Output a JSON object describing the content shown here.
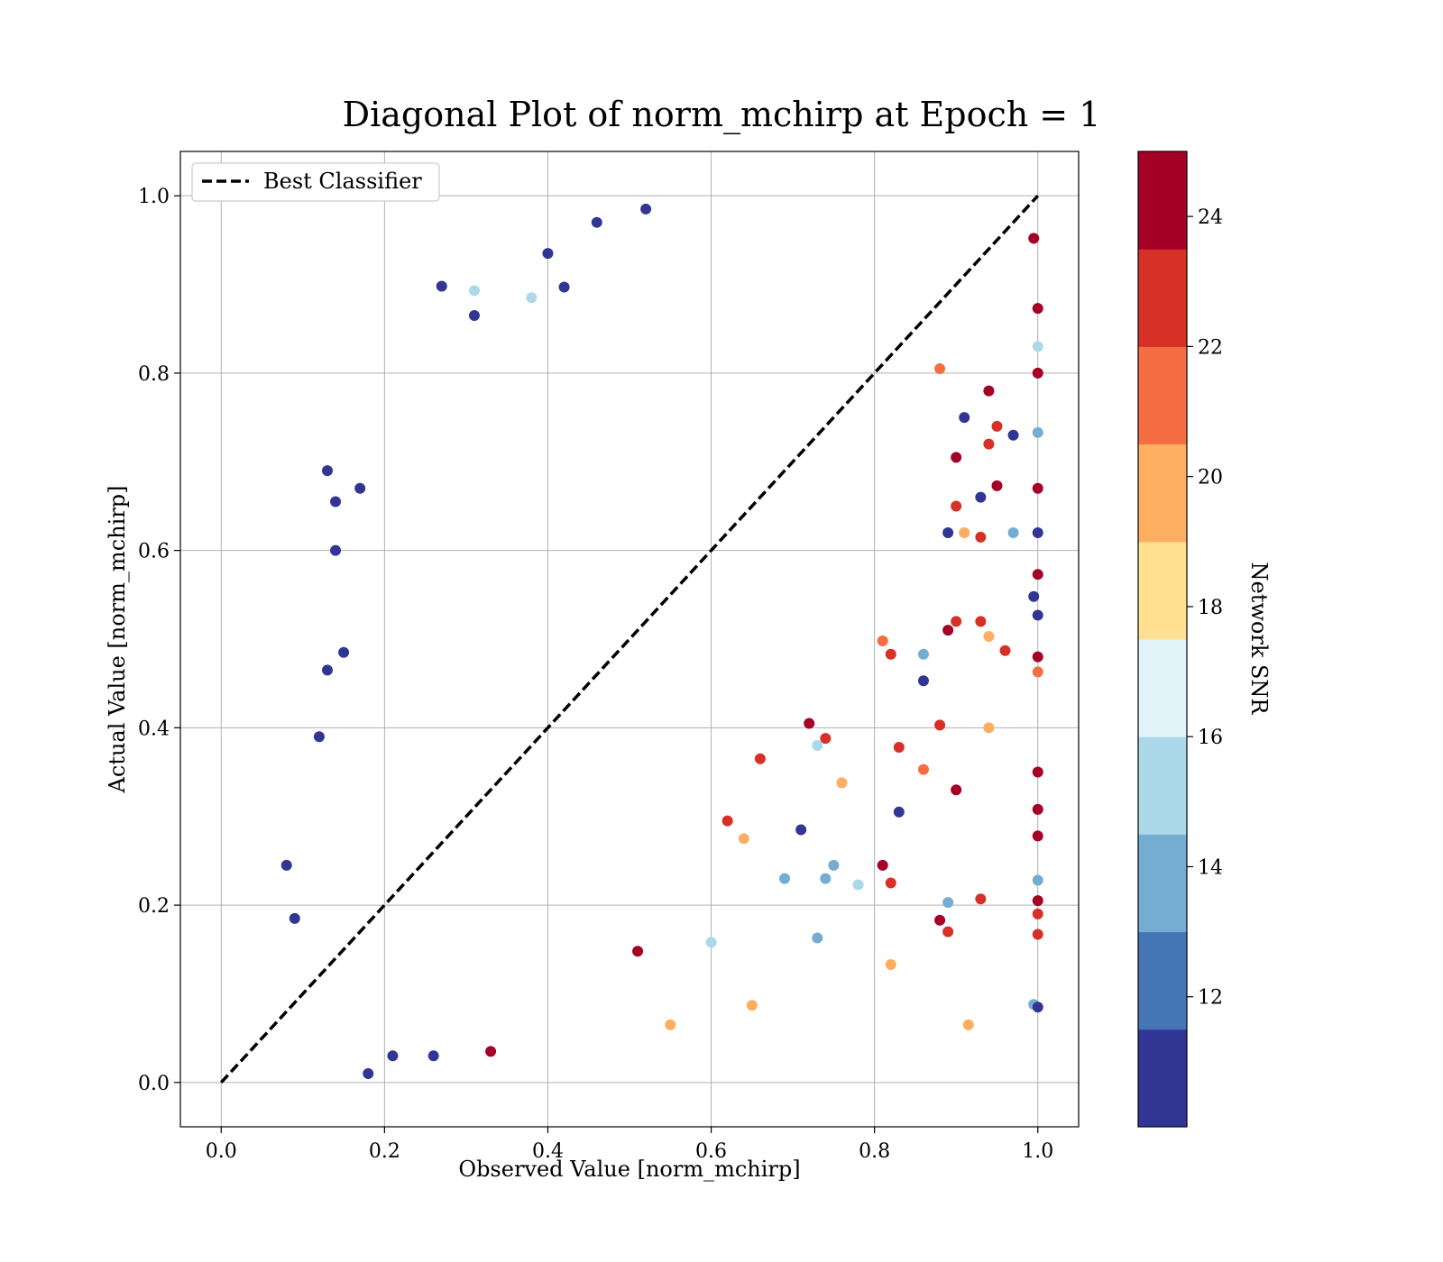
{
  "chart_data": {
    "type": "scatter",
    "title": "Diagonal Plot of norm_mchirp at Epoch = 1",
    "xlabel": "Observed Value [norm_mchirp]",
    "ylabel": "Actual Value [norm_mchirp]",
    "xlim": [
      -0.05,
      1.05
    ],
    "ylim": [
      -0.05,
      1.05
    ],
    "xticks": [
      "0.0",
      "0.2",
      "0.4",
      "0.6",
      "0.8",
      "1.0"
    ],
    "yticks": [
      "0.0",
      "0.2",
      "0.4",
      "0.6",
      "0.8",
      "1.0"
    ],
    "grid": true,
    "legend": {
      "position": "top-left",
      "entries": [
        "Best Classifier"
      ]
    },
    "reference_line": {
      "name": "Best Classifier",
      "x": [
        0.0,
        1.0
      ],
      "y": [
        0.0,
        1.0
      ],
      "style": "dashed",
      "color": "#000000"
    },
    "colorbar": {
      "label": "Network SNR",
      "ticks": [
        "12",
        "14",
        "16",
        "18",
        "20",
        "22",
        "24"
      ],
      "range": [
        10,
        25
      ],
      "colors": [
        "#313695",
        "#4575b4",
        "#74add1",
        "#abd9e9",
        "#e0f3f8",
        "#fee090",
        "#fdae61",
        "#f46d43",
        "#d73027",
        "#a50026"
      ]
    },
    "points": [
      {
        "x": 0.52,
        "y": 0.985,
        "snr": 11
      },
      {
        "x": 0.46,
        "y": 0.97,
        "snr": 11
      },
      {
        "x": 0.4,
        "y": 0.935,
        "snr": 11
      },
      {
        "x": 0.27,
        "y": 0.898,
        "snr": 11
      },
      {
        "x": 0.31,
        "y": 0.865,
        "snr": 11
      },
      {
        "x": 0.31,
        "y": 0.893,
        "snr": 15
      },
      {
        "x": 0.38,
        "y": 0.885,
        "snr": 15
      },
      {
        "x": 0.42,
        "y": 0.897,
        "snr": 11
      },
      {
        "x": 0.14,
        "y": 0.655,
        "snr": 11
      },
      {
        "x": 0.13,
        "y": 0.69,
        "snr": 11
      },
      {
        "x": 0.17,
        "y": 0.67,
        "snr": 11
      },
      {
        "x": 0.14,
        "y": 0.6,
        "snr": 11
      },
      {
        "x": 0.15,
        "y": 0.485,
        "snr": 11
      },
      {
        "x": 0.13,
        "y": 0.465,
        "snr": 11
      },
      {
        "x": 0.12,
        "y": 0.39,
        "snr": 11
      },
      {
        "x": 0.08,
        "y": 0.245,
        "snr": 11
      },
      {
        "x": 0.09,
        "y": 0.185,
        "snr": 11
      },
      {
        "x": 0.18,
        "y": 0.01,
        "snr": 11
      },
      {
        "x": 0.21,
        "y": 0.03,
        "snr": 11
      },
      {
        "x": 0.26,
        "y": 0.03,
        "snr": 11
      },
      {
        "x": 0.33,
        "y": 0.035,
        "snr": 24
      },
      {
        "x": 0.55,
        "y": 0.065,
        "snr": 20
      },
      {
        "x": 0.65,
        "y": 0.087,
        "snr": 19
      },
      {
        "x": 0.915,
        "y": 0.065,
        "snr": 19
      },
      {
        "x": 0.82,
        "y": 0.133,
        "snr": 19
      },
      {
        "x": 0.73,
        "y": 0.163,
        "snr": 13
      },
      {
        "x": 0.6,
        "y": 0.158,
        "snr": 15
      },
      {
        "x": 0.51,
        "y": 0.148,
        "snr": 24
      },
      {
        "x": 0.88,
        "y": 0.183,
        "snr": 24
      },
      {
        "x": 0.89,
        "y": 0.203,
        "snr": 13
      },
      {
        "x": 0.89,
        "y": 0.17,
        "snr": 22
      },
      {
        "x": 0.93,
        "y": 0.207,
        "snr": 23
      },
      {
        "x": 0.995,
        "y": 0.952,
        "snr": 24
      },
      {
        "x": 1.0,
        "y": 0.873,
        "snr": 24
      },
      {
        "x": 1.0,
        "y": 0.83,
        "snr": 15
      },
      {
        "x": 1.0,
        "y": 0.8,
        "snr": 24
      },
      {
        "x": 1.0,
        "y": 0.733,
        "snr": 14
      },
      {
        "x": 1.0,
        "y": 0.67,
        "snr": 24
      },
      {
        "x": 1.0,
        "y": 0.62,
        "snr": 11
      },
      {
        "x": 1.0,
        "y": 0.573,
        "snr": 24
      },
      {
        "x": 0.995,
        "y": 0.548,
        "snr": 11
      },
      {
        "x": 1.0,
        "y": 0.527,
        "snr": 11
      },
      {
        "x": 1.0,
        "y": 0.48,
        "snr": 24
      },
      {
        "x": 1.0,
        "y": 0.463,
        "snr": 21
      },
      {
        "x": 1.0,
        "y": 0.35,
        "snr": 24
      },
      {
        "x": 1.0,
        "y": 0.308,
        "snr": 24
      },
      {
        "x": 1.0,
        "y": 0.278,
        "snr": 24
      },
      {
        "x": 1.0,
        "y": 0.228,
        "snr": 13
      },
      {
        "x": 1.0,
        "y": 0.205,
        "snr": 24
      },
      {
        "x": 1.0,
        "y": 0.19,
        "snr": 22
      },
      {
        "x": 1.0,
        "y": 0.167,
        "snr": 22
      },
      {
        "x": 0.995,
        "y": 0.088,
        "snr": 14
      },
      {
        "x": 1.0,
        "y": 0.085,
        "snr": 11
      },
      {
        "x": 0.94,
        "y": 0.78,
        "snr": 24
      },
      {
        "x": 0.95,
        "y": 0.74,
        "snr": 23
      },
      {
        "x": 0.97,
        "y": 0.73,
        "snr": 11
      },
      {
        "x": 0.94,
        "y": 0.72,
        "snr": 22
      },
      {
        "x": 0.91,
        "y": 0.75,
        "snr": 11
      },
      {
        "x": 0.9,
        "y": 0.705,
        "snr": 24
      },
      {
        "x": 0.95,
        "y": 0.673,
        "snr": 24
      },
      {
        "x": 0.93,
        "y": 0.66,
        "snr": 11
      },
      {
        "x": 0.9,
        "y": 0.65,
        "snr": 22
      },
      {
        "x": 0.88,
        "y": 0.805,
        "snr": 21
      },
      {
        "x": 0.89,
        "y": 0.62,
        "snr": 11
      },
      {
        "x": 0.91,
        "y": 0.62,
        "snr": 20
      },
      {
        "x": 0.93,
        "y": 0.615,
        "snr": 23
      },
      {
        "x": 0.97,
        "y": 0.62,
        "snr": 13
      },
      {
        "x": 0.89,
        "y": 0.51,
        "snr": 24
      },
      {
        "x": 0.9,
        "y": 0.52,
        "snr": 22
      },
      {
        "x": 0.93,
        "y": 0.52,
        "snr": 22
      },
      {
        "x": 0.94,
        "y": 0.503,
        "snr": 20
      },
      {
        "x": 0.96,
        "y": 0.487,
        "snr": 22
      },
      {
        "x": 0.86,
        "y": 0.483,
        "snr": 13
      },
      {
        "x": 0.82,
        "y": 0.483,
        "snr": 23
      },
      {
        "x": 0.81,
        "y": 0.498,
        "snr": 21
      },
      {
        "x": 0.86,
        "y": 0.453,
        "snr": 11
      },
      {
        "x": 0.88,
        "y": 0.403,
        "snr": 23
      },
      {
        "x": 0.94,
        "y": 0.4,
        "snr": 19
      },
      {
        "x": 0.9,
        "y": 0.33,
        "snr": 24
      },
      {
        "x": 0.83,
        "y": 0.305,
        "snr": 11
      },
      {
        "x": 0.81,
        "y": 0.245,
        "snr": 24
      },
      {
        "x": 0.82,
        "y": 0.225,
        "snr": 22
      },
      {
        "x": 0.78,
        "y": 0.223,
        "snr": 15
      },
      {
        "x": 0.75,
        "y": 0.245,
        "snr": 14
      },
      {
        "x": 0.71,
        "y": 0.285,
        "snr": 11
      },
      {
        "x": 0.69,
        "y": 0.23,
        "snr": 14
      },
      {
        "x": 0.74,
        "y": 0.23,
        "snr": 14
      },
      {
        "x": 0.83,
        "y": 0.378,
        "snr": 22
      },
      {
        "x": 0.86,
        "y": 0.353,
        "snr": 21
      },
      {
        "x": 0.76,
        "y": 0.338,
        "snr": 19
      },
      {
        "x": 0.74,
        "y": 0.388,
        "snr": 22
      },
      {
        "x": 0.72,
        "y": 0.405,
        "snr": 24
      },
      {
        "x": 0.73,
        "y": 0.38,
        "snr": 15
      },
      {
        "x": 0.66,
        "y": 0.365,
        "snr": 22
      },
      {
        "x": 0.64,
        "y": 0.275,
        "snr": 20
      },
      {
        "x": 0.62,
        "y": 0.295,
        "snr": 23
      }
    ]
  }
}
